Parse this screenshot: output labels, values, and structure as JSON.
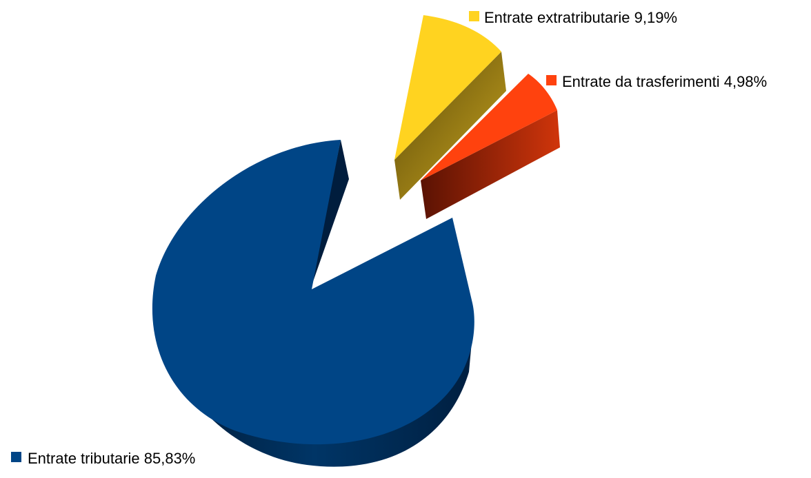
{
  "chart_data": {
    "type": "pie",
    "style": "3d-exploded",
    "title": "",
    "slices": [
      {
        "label": "Entrate tributarie 85,83%",
        "value": 85.83,
        "color": "#004586"
      },
      {
        "label": "Entrate extratributarie 9,19%",
        "value": 9.19,
        "color": "#ffd320"
      },
      {
        "label": "Entrate da trasferimenti 4,98%",
        "value": 4.98,
        "color": "#ff420e"
      }
    ]
  }
}
